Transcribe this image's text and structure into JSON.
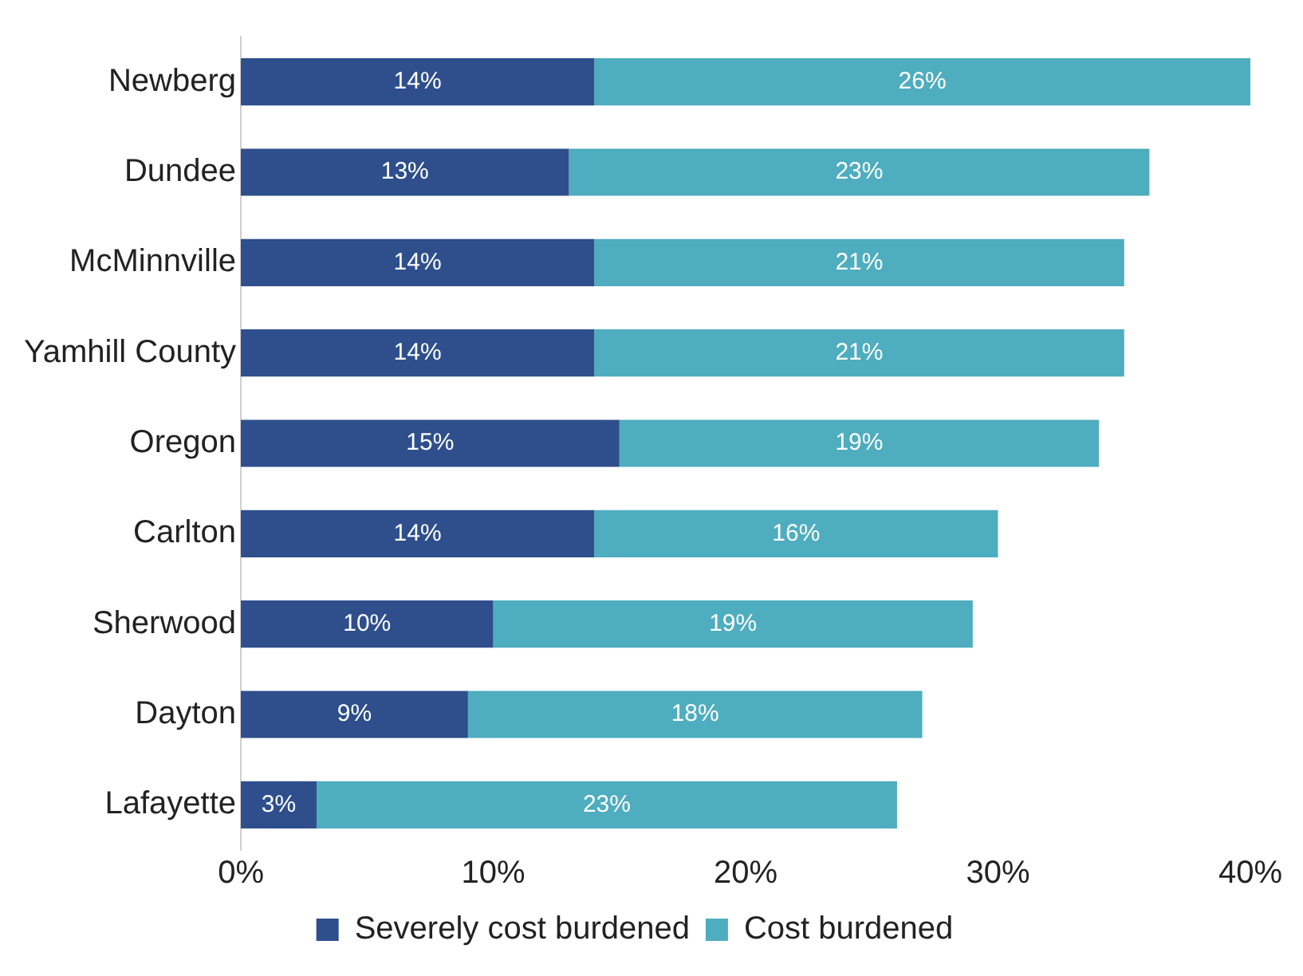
{
  "chart_data": {
    "type": "bar",
    "orientation": "horizontal",
    "stacked": true,
    "categories": [
      "Newberg",
      "Dundee",
      "McMinnville",
      "Yamhill County",
      "Oregon",
      "Carlton",
      "Sherwood",
      "Dayton",
      "Lafayette"
    ],
    "series": [
      {
        "name": "Severely cost burdened",
        "color": "#2e4f8c",
        "values": [
          14,
          13,
          14,
          14,
          15,
          14,
          10,
          9,
          3
        ],
        "value_labels": [
          "14%",
          "13%",
          "14%",
          "14%",
          "15%",
          "14%",
          "10%",
          "9%",
          "3%"
        ]
      },
      {
        "name": "Cost burdened",
        "color": "#4eadbe",
        "values": [
          26,
          23,
          21,
          21,
          19,
          16,
          19,
          18,
          23
        ],
        "value_labels": [
          "26%",
          "23%",
          "21%",
          "21%",
          "19%",
          "16%",
          "19%",
          "18%",
          "23%"
        ]
      }
    ],
    "xlim": [
      0,
      40
    ],
    "xticks": [
      {
        "value": 0,
        "label": "0%"
      },
      {
        "value": 10,
        "label": "10%"
      },
      {
        "value": 20,
        "label": "20%"
      },
      {
        "value": 30,
        "label": "30%"
      },
      {
        "value": 40,
        "label": "40%"
      }
    ],
    "grid": false,
    "legend": "bottom"
  }
}
